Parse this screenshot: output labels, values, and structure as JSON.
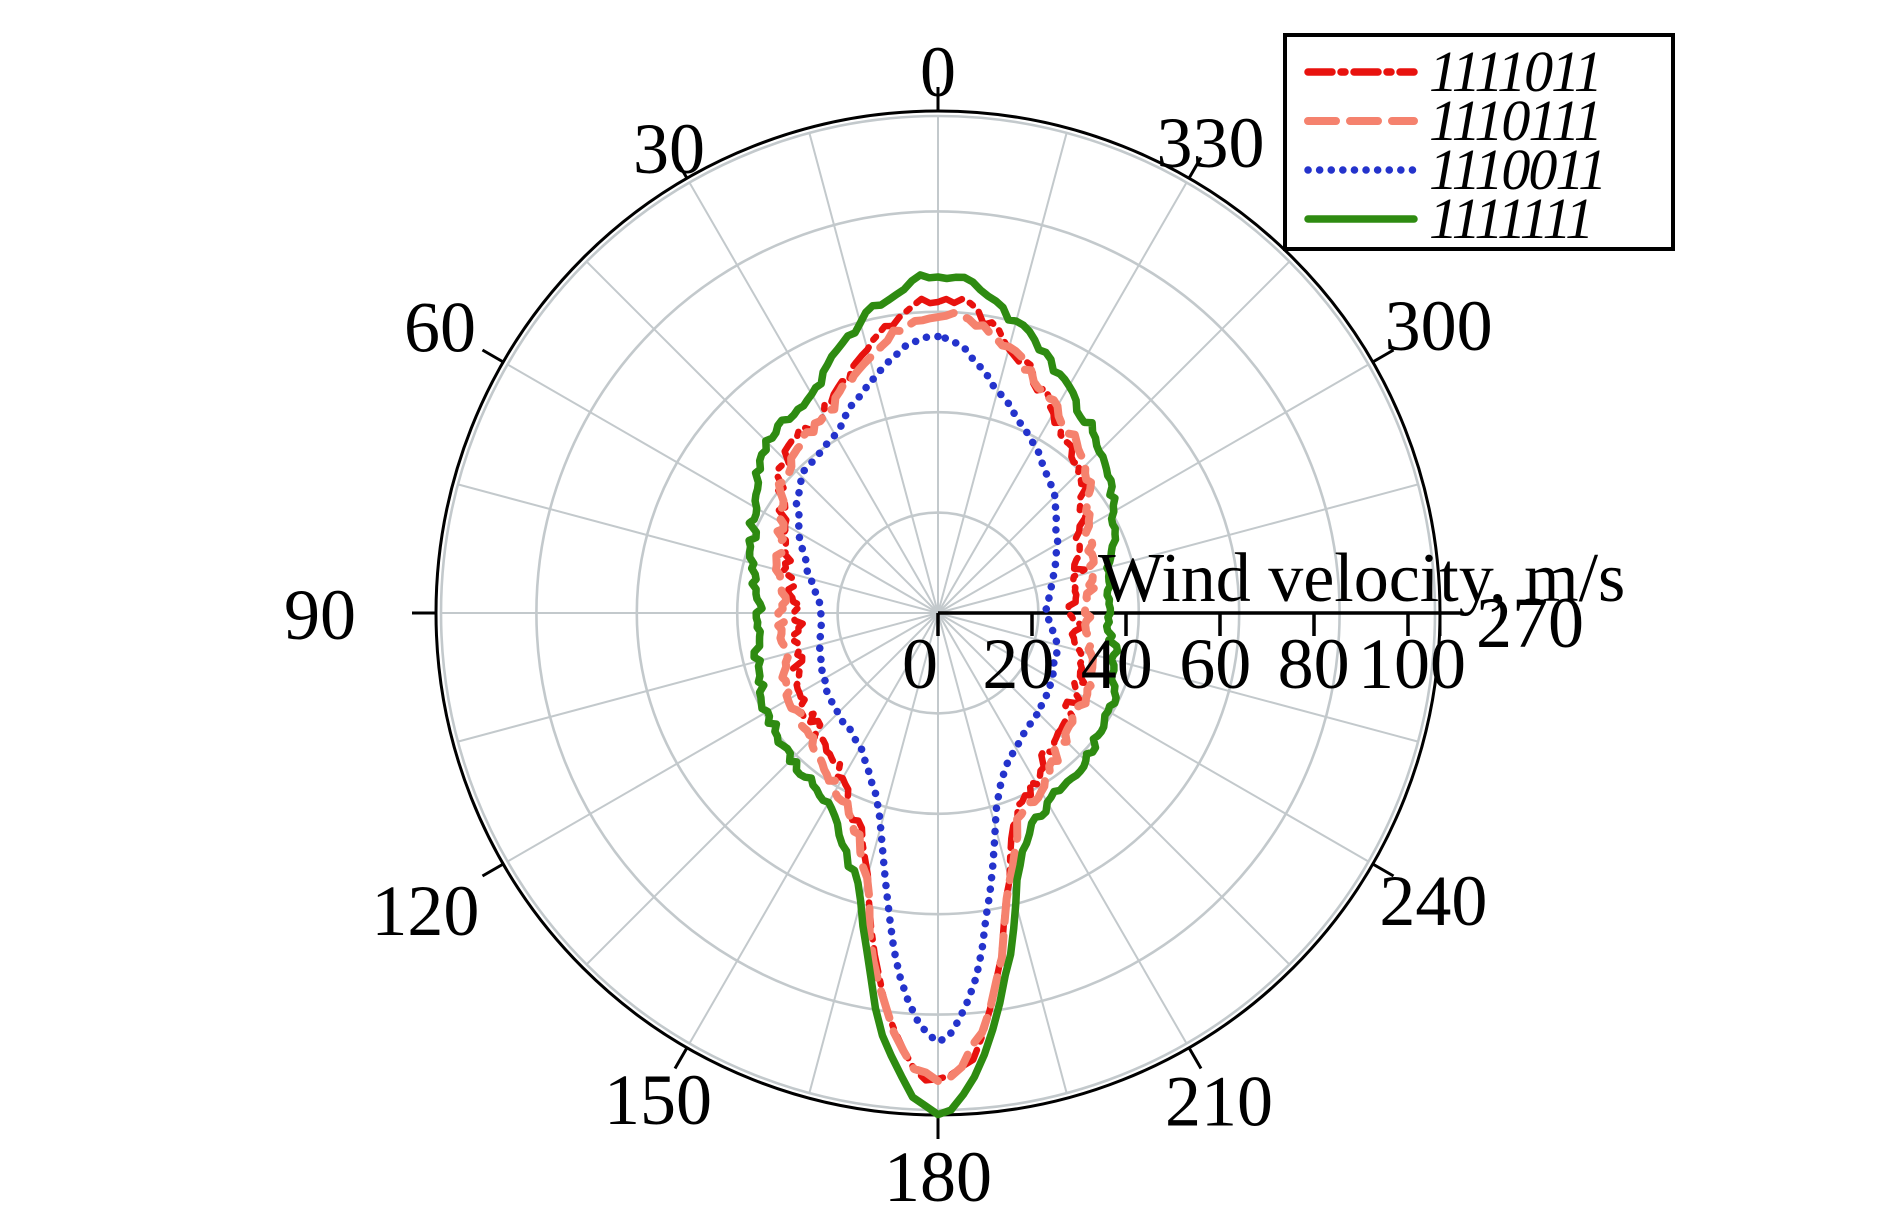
{
  "title": {
    "text": "Wind velocity, m/s"
  },
  "legend": {
    "items": [
      {
        "label": "1111011",
        "color": "#e8120e",
        "line_style": "dash-dot"
      },
      {
        "label": "1110111",
        "color": "#f5826e",
        "line_style": "dashed"
      },
      {
        "label": "1110011",
        "color": "#2433cc",
        "line_style": "dotted"
      },
      {
        "label": "1111111",
        "color": "#2e8b11",
        "line_style": "solid"
      }
    ]
  },
  "axis": {
    "angle_labels": [
      "0",
      "30",
      "60",
      "90",
      "120",
      "150",
      "180",
      "210",
      "240",
      "270",
      "300",
      "330"
    ],
    "radial_tick_labels": [
      "0",
      "20",
      "40",
      "60",
      "80",
      "100"
    ],
    "grid_color": "#c3c9cc",
    "line_color": "#000000"
  },
  "chart_data": {
    "type": "line",
    "coordinate": "polar",
    "zero_at": "top",
    "angle_direction": "counterclockwise",
    "title": "Wind velocity, m/s",
    "r_axis": {
      "ticks": [
        0,
        20,
        40,
        60,
        80,
        100
      ],
      "rmax": 106.8,
      "unit": "m/s"
    },
    "angles_deg": [
      0,
      15,
      30,
      45,
      60,
      75,
      90,
      105,
      120,
      135,
      150,
      160,
      165,
      170,
      175,
      180,
      185,
      190,
      195,
      200,
      210,
      225,
      240,
      255,
      270,
      285,
      300,
      315,
      330,
      345
    ],
    "series": [
      {
        "name": "1111011",
        "color": "#e8120e",
        "line_style": "dash-dot",
        "values": [
          67,
          58,
          49,
          46,
          38,
          33,
          30,
          31,
          34,
          36,
          41,
          49,
          58,
          75,
          93,
          100,
          93,
          75,
          58,
          48,
          41,
          36,
          34,
          31,
          29,
          31,
          35,
          43,
          49,
          59
        ]
      },
      {
        "name": "1110111",
        "color": "#f5826e",
        "line_style": "dashed",
        "values": [
          64,
          56,
          48,
          45,
          39,
          35,
          33,
          34,
          36,
          38,
          43,
          50,
          59,
          76,
          92,
          99,
          92,
          76,
          59,
          49,
          43,
          38,
          36,
          34,
          32,
          34,
          37,
          44,
          50,
          58
        ]
      },
      {
        "name": "1110011",
        "color": "#2433cc",
        "line_style": "dotted",
        "values": [
          59,
          52,
          44,
          41,
          34,
          28,
          25,
          26,
          28,
          30,
          33,
          40,
          47,
          62,
          81,
          91,
          81,
          62,
          47,
          39,
          33,
          30,
          28,
          26,
          23,
          25,
          29,
          35,
          41,
          49
        ]
      },
      {
        "name": "1111111",
        "color": "#2e8b11",
        "line_style": "solid",
        "values": [
          72,
          64,
          54,
          51,
          45,
          41,
          38,
          40,
          42,
          44,
          47,
          56,
          64,
          81,
          98,
          106,
          98,
          81,
          64,
          53,
          47,
          44,
          42,
          39,
          36,
          38,
          43,
          49,
          55,
          64
        ]
      }
    ]
  }
}
